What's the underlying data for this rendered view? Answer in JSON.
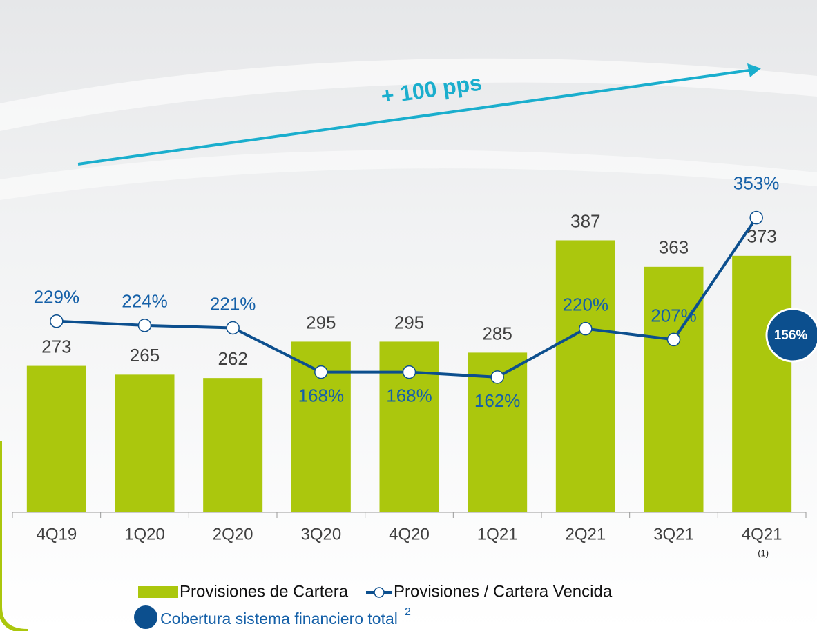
{
  "chart_data": {
    "type": "combo",
    "categories": [
      "4Q19",
      "1Q20",
      "2Q20",
      "3Q20",
      "4Q20",
      "1Q21",
      "2Q21",
      "3Q21",
      "4Q21"
    ],
    "category_notes": [
      null,
      null,
      null,
      null,
      null,
      null,
      null,
      null,
      "(1)"
    ],
    "series": [
      {
        "name": "Provisiones de Cartera",
        "kind": "bar",
        "color": "#abc70d",
        "values": [
          273,
          265,
          262,
          295,
          295,
          285,
          387,
          363,
          373
        ]
      },
      {
        "name": "Provisiones / Cartera Vencida",
        "kind": "line",
        "color": "#0c4f8e",
        "axis": "y2",
        "values": [
          229,
          224,
          221,
          168,
          168,
          162,
          220,
          207,
          353
        ],
        "value_labels": [
          "229%",
          "224%",
          "221%",
          "168%",
          "168%",
          "162%",
          "220%",
          "207%",
          "353%"
        ]
      }
    ],
    "ylim": [
      140,
      500
    ],
    "y2lim": [
      0,
      475
    ],
    "trend_label": "+ 100 pps",
    "callout": {
      "label": "156%",
      "color": "#0c4f8e"
    },
    "extra_legend": {
      "name": "Cobertura sistema financiero total",
      "note": "2",
      "color": "#0c4f8e"
    }
  }
}
